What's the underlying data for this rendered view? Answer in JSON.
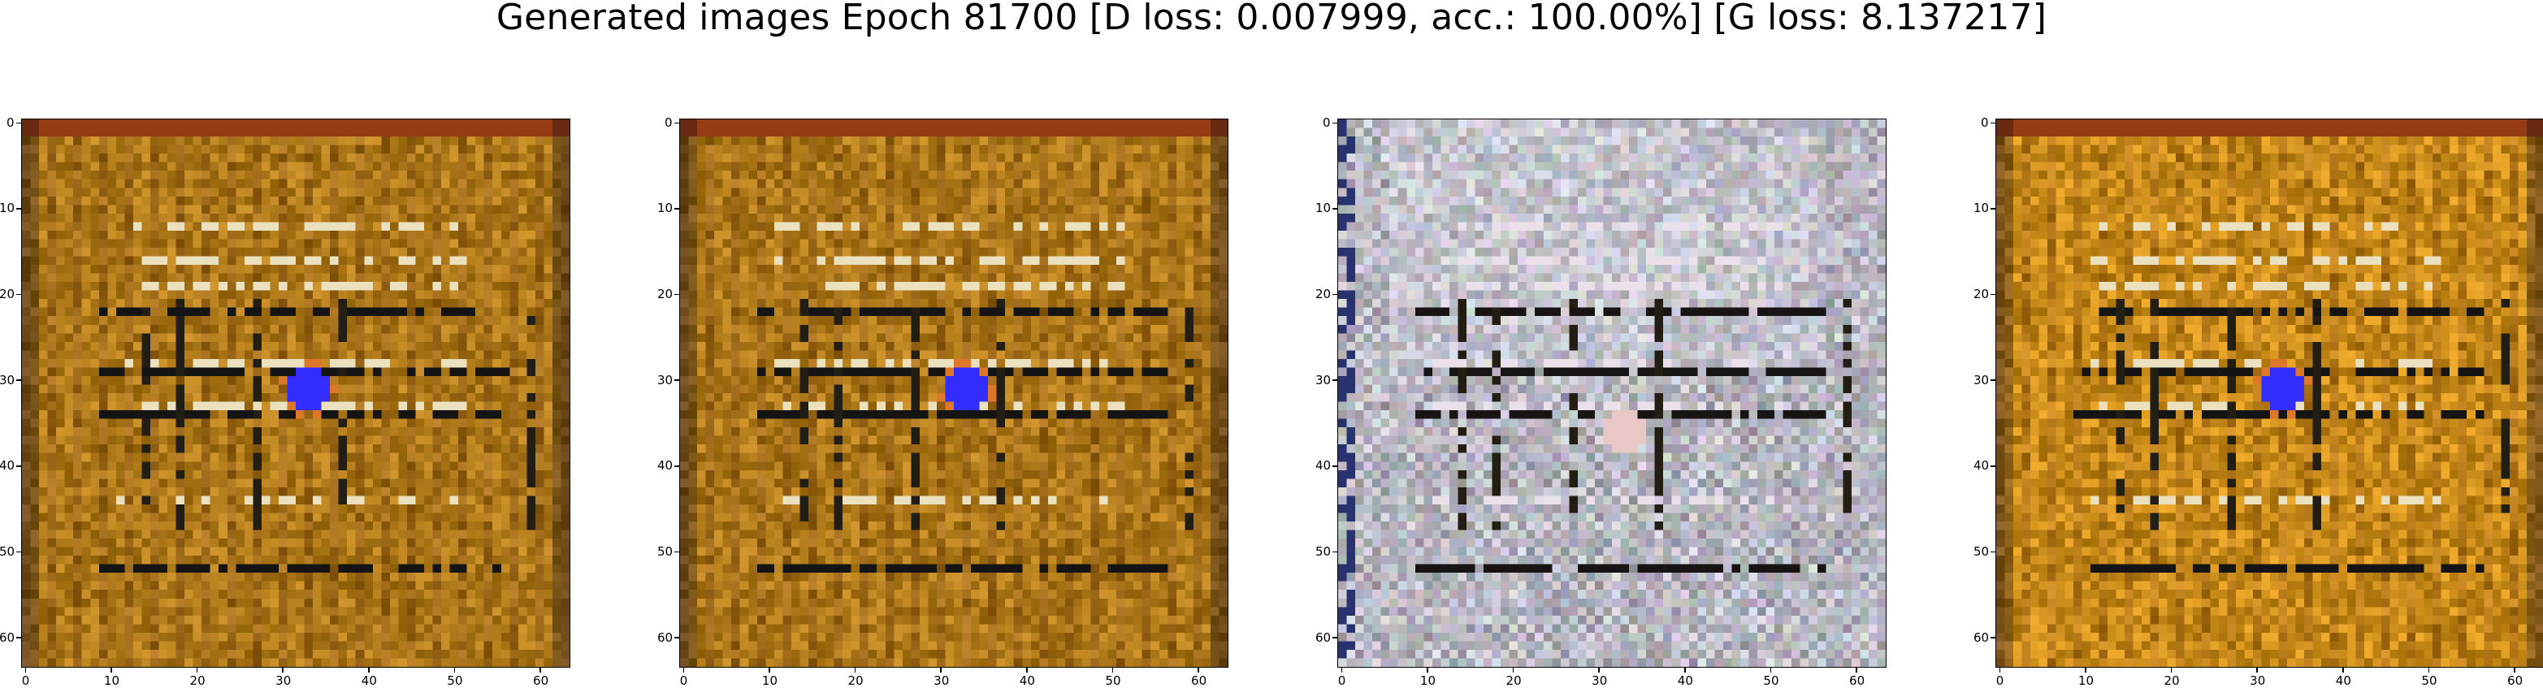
{
  "figure": {
    "title": "Generated images Epoch 81700 [D loss: 0.007999, acc.: 100.00%] [G loss: 8.137217]"
  },
  "axes": {
    "x_ticks": [
      "0",
      "10",
      "20",
      "30",
      "40",
      "50",
      "60"
    ],
    "y_ticks": [
      "0",
      "10",
      "20",
      "30",
      "40",
      "50",
      "60"
    ],
    "image_size": 64
  },
  "panels": [
    {
      "name": "generated-image-1",
      "palette": "ochre",
      "blob": "blue"
    },
    {
      "name": "generated-image-2",
      "palette": "ochre",
      "blob": "blue"
    },
    {
      "name": "generated-image-3",
      "palette": "grey",
      "blob": "pink"
    },
    {
      "name": "generated-image-4",
      "palette": "ochre-vivid",
      "blob": "blue"
    }
  ],
  "colors": {
    "ochre_base": "#b8860b",
    "grey_base": "#c8c8c8",
    "blob_blue": "#3030ff",
    "blob_pink": "#f0c8c8"
  }
}
